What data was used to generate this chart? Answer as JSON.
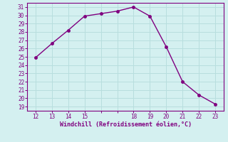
{
  "x": [
    12,
    13,
    14,
    15,
    16,
    17,
    18,
    19,
    20,
    21,
    22,
    23
  ],
  "y": [
    24.9,
    26.6,
    28.2,
    29.9,
    30.2,
    30.5,
    31.0,
    29.9,
    26.2,
    22.0,
    20.4,
    19.3
  ],
  "line_color": "#800080",
  "marker_color": "#800080",
  "bg_color": "#d4f0f0",
  "grid_color": "#b8dede",
  "xlabel": "Windchill (Refroidissement éolien,°C)",
  "xlabel_color": "#800080",
  "xlim": [
    11.5,
    23.5
  ],
  "ylim": [
    18.5,
    31.5
  ],
  "xticks": [
    12,
    13,
    14,
    15,
    18,
    19,
    20,
    21,
    22,
    23
  ],
  "yticks": [
    19,
    20,
    21,
    22,
    23,
    24,
    25,
    26,
    27,
    28,
    29,
    30,
    31
  ],
  "tick_color": "#800080",
  "font_name": "monospace"
}
